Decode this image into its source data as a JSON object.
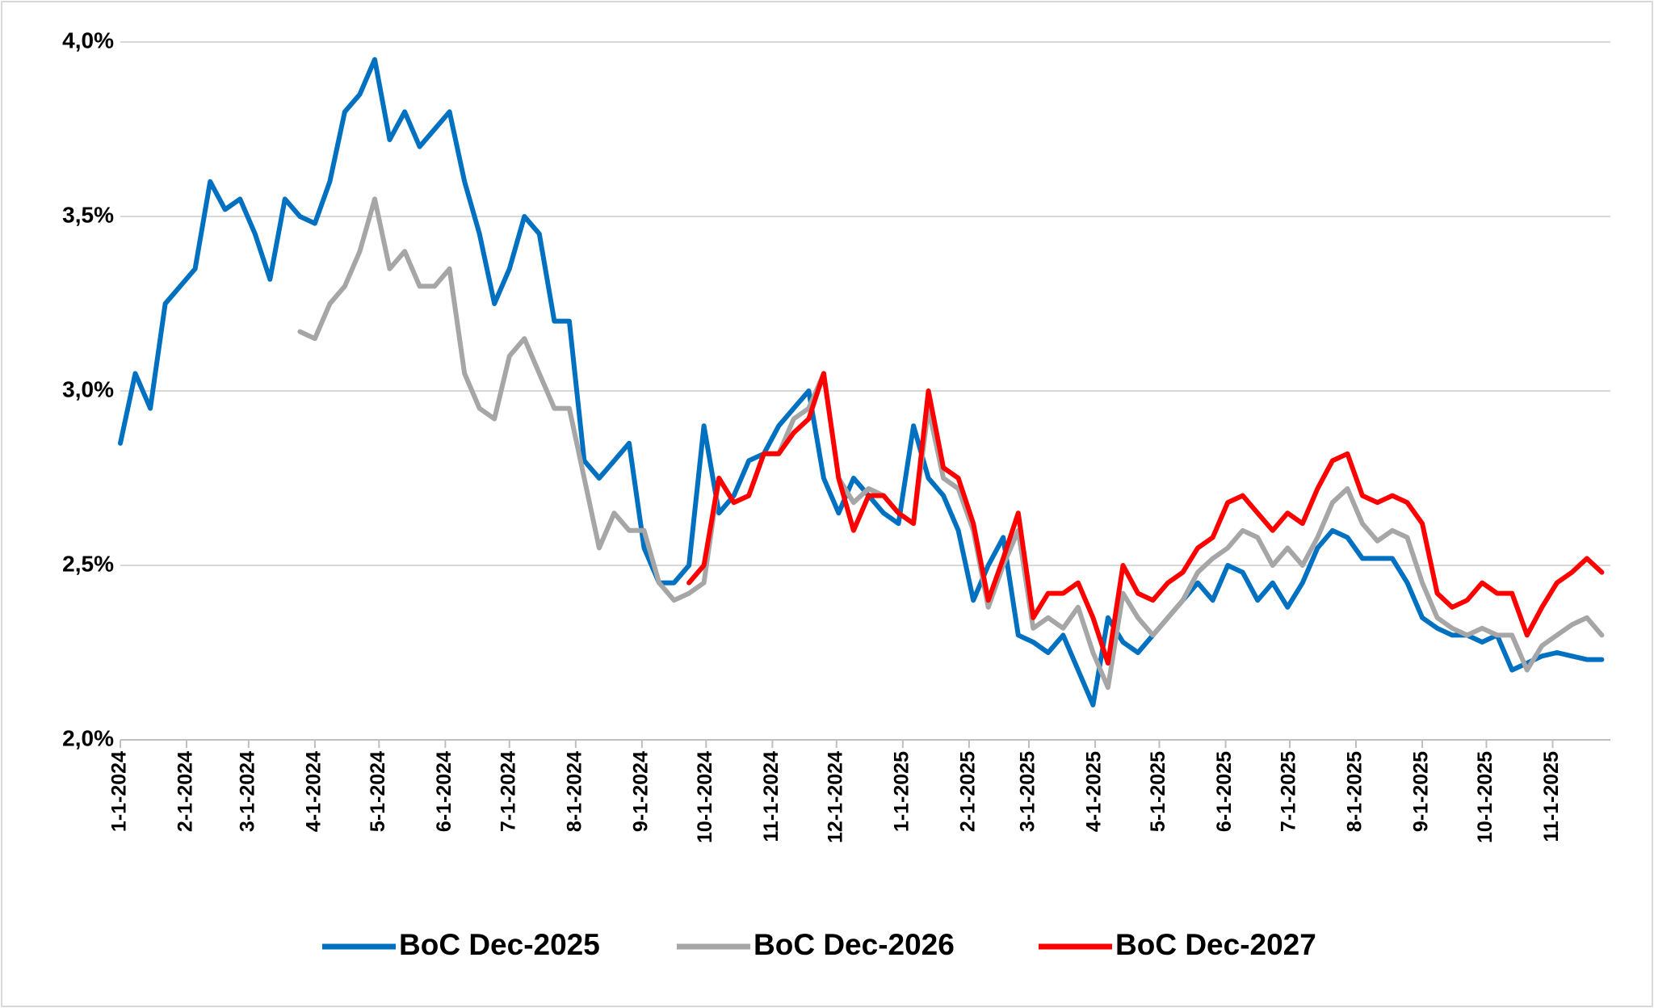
{
  "chart_data": {
    "type": "line",
    "x": [
      "2024-01-01",
      "2024-01-08",
      "2024-01-15",
      "2024-01-22",
      "2024-01-29",
      "2024-02-05",
      "2024-02-12",
      "2024-02-19",
      "2024-02-26",
      "2024-03-04",
      "2024-03-11",
      "2024-03-18",
      "2024-03-25",
      "2024-04-01",
      "2024-04-08",
      "2024-04-15",
      "2024-04-22",
      "2024-04-29",
      "2024-05-06",
      "2024-05-13",
      "2024-05-20",
      "2024-05-27",
      "2024-06-03",
      "2024-06-10",
      "2024-06-17",
      "2024-06-24",
      "2024-07-01",
      "2024-07-08",
      "2024-07-15",
      "2024-07-22",
      "2024-07-29",
      "2024-08-05",
      "2024-08-12",
      "2024-08-19",
      "2024-08-26",
      "2024-09-02",
      "2024-09-09",
      "2024-09-16",
      "2024-09-23",
      "2024-09-30",
      "2024-10-07",
      "2024-10-14",
      "2024-10-21",
      "2024-10-28",
      "2024-11-04",
      "2024-11-11",
      "2024-11-18",
      "2024-11-25",
      "2024-12-02",
      "2024-12-09",
      "2024-12-16",
      "2024-12-23",
      "2024-12-30",
      "2025-01-06",
      "2025-01-13",
      "2025-01-20",
      "2025-01-27",
      "2025-02-03",
      "2025-02-10",
      "2025-02-17",
      "2025-02-24",
      "2025-03-03",
      "2025-03-10",
      "2025-03-17",
      "2025-03-24",
      "2025-03-31",
      "2025-04-07",
      "2025-04-14",
      "2025-04-21",
      "2025-04-28",
      "2025-05-05",
      "2025-05-12",
      "2025-05-19",
      "2025-05-26",
      "2025-06-02",
      "2025-06-09",
      "2025-06-16",
      "2025-06-23",
      "2025-06-30",
      "2025-07-07",
      "2025-07-14",
      "2025-07-21",
      "2025-07-28",
      "2025-08-04",
      "2025-08-11",
      "2025-08-18",
      "2025-08-25",
      "2025-09-01",
      "2025-09-08",
      "2025-09-15",
      "2025-09-22",
      "2025-09-29",
      "2025-10-06",
      "2025-10-13",
      "2025-10-20",
      "2025-10-27",
      "2025-11-03",
      "2025-11-10",
      "2025-11-17",
      "2025-11-24"
    ],
    "series": [
      {
        "name": "BoC Dec-2025",
        "color": "#0070c0",
        "values": [
          2.85,
          3.05,
          2.95,
          3.25,
          3.3,
          3.35,
          3.6,
          3.52,
          3.55,
          3.45,
          3.32,
          3.55,
          3.5,
          3.48,
          3.6,
          3.8,
          3.85,
          3.95,
          3.72,
          3.8,
          3.7,
          3.75,
          3.8,
          3.6,
          3.45,
          3.25,
          3.35,
          3.5,
          3.45,
          3.2,
          3.2,
          2.8,
          2.75,
          2.8,
          2.85,
          2.55,
          2.45,
          2.45,
          2.5,
          2.9,
          2.65,
          2.7,
          2.8,
          2.82,
          2.9,
          2.95,
          3.0,
          2.75,
          2.65,
          2.75,
          2.7,
          2.65,
          2.62,
          2.9,
          2.75,
          2.7,
          2.6,
          2.4,
          2.5,
          2.58,
          2.3,
          2.28,
          2.25,
          2.3,
          2.2,
          2.1,
          2.35,
          2.28,
          2.25,
          2.3,
          2.35,
          2.4,
          2.45,
          2.4,
          2.5,
          2.48,
          2.4,
          2.45,
          2.38,
          2.45,
          2.55,
          2.6,
          2.58,
          2.52,
          2.52,
          2.52,
          2.45,
          2.35,
          2.32,
          2.3,
          2.3,
          2.28,
          2.3,
          2.2,
          2.22,
          2.24,
          2.25,
          2.24,
          2.23,
          2.23
        ]
      },
      {
        "name": "BoC Dec-2026",
        "color": "#a6a6a6",
        "values": [
          null,
          null,
          null,
          null,
          null,
          null,
          null,
          null,
          null,
          null,
          null,
          null,
          3.17,
          3.15,
          3.25,
          3.3,
          3.4,
          3.55,
          3.35,
          3.4,
          3.3,
          3.3,
          3.35,
          3.05,
          2.95,
          2.92,
          3.1,
          3.15,
          3.05,
          2.95,
          2.95,
          2.75,
          2.55,
          2.65,
          2.6,
          2.6,
          2.45,
          2.4,
          2.42,
          2.45,
          2.75,
          2.68,
          2.7,
          2.82,
          2.82,
          2.92,
          2.95,
          3.05,
          2.75,
          2.68,
          2.72,
          2.7,
          2.65,
          2.62,
          2.95,
          2.75,
          2.72,
          2.6,
          2.38,
          2.5,
          2.6,
          2.32,
          2.35,
          2.32,
          2.38,
          2.25,
          2.15,
          2.42,
          2.35,
          2.3,
          2.35,
          2.4,
          2.48,
          2.52,
          2.55,
          2.6,
          2.58,
          2.5,
          2.55,
          2.5,
          2.58,
          2.68,
          2.72,
          2.62,
          2.57,
          2.6,
          2.58,
          2.45,
          2.35,
          2.32,
          2.3,
          2.32,
          2.3,
          2.3,
          2.2,
          2.27,
          2.3,
          2.33,
          2.35,
          2.3
        ]
      },
      {
        "name": "BoC Dec-2027",
        "color": "#ff0000",
        "values": [
          null,
          null,
          null,
          null,
          null,
          null,
          null,
          null,
          null,
          null,
          null,
          null,
          null,
          null,
          null,
          null,
          null,
          null,
          null,
          null,
          null,
          null,
          null,
          null,
          null,
          null,
          null,
          null,
          null,
          null,
          null,
          null,
          null,
          null,
          null,
          null,
          null,
          null,
          2.45,
          2.5,
          2.75,
          2.68,
          2.7,
          2.82,
          2.82,
          2.88,
          2.92,
          3.05,
          2.75,
          2.6,
          2.7,
          2.7,
          2.65,
          2.62,
          3.0,
          2.78,
          2.75,
          2.62,
          2.4,
          2.52,
          2.65,
          2.35,
          2.42,
          2.42,
          2.45,
          2.35,
          2.22,
          2.5,
          2.42,
          2.4,
          2.45,
          2.48,
          2.55,
          2.58,
          2.68,
          2.7,
          2.65,
          2.6,
          2.65,
          2.62,
          2.72,
          2.8,
          2.82,
          2.7,
          2.68,
          2.7,
          2.68,
          2.62,
          2.42,
          2.38,
          2.4,
          2.45,
          2.42,
          2.42,
          2.3,
          2.38,
          2.45,
          2.48,
          2.52,
          2.48
        ]
      }
    ],
    "xlim": [
      "2024-01-01",
      "2025-11-28"
    ],
    "xticks": [
      {
        "value": "2024-01-01",
        "label": "1-1-2024"
      },
      {
        "value": "2024-02-01",
        "label": "2-1-2024"
      },
      {
        "value": "2024-03-01",
        "label": "3-1-2024"
      },
      {
        "value": "2024-04-01",
        "label": "4-1-2024"
      },
      {
        "value": "2024-05-01",
        "label": "5-1-2024"
      },
      {
        "value": "2024-06-01",
        "label": "6-1-2024"
      },
      {
        "value": "2024-07-01",
        "label": "7-1-2024"
      },
      {
        "value": "2024-08-01",
        "label": "8-1-2024"
      },
      {
        "value": "2024-09-01",
        "label": "9-1-2024"
      },
      {
        "value": "2024-10-01",
        "label": "10-1-2024"
      },
      {
        "value": "2024-11-01",
        "label": "11-1-2024"
      },
      {
        "value": "2024-12-01",
        "label": "12-1-2024"
      },
      {
        "value": "2025-01-01",
        "label": "1-1-2025"
      },
      {
        "value": "2025-02-01",
        "label": "2-1-2025"
      },
      {
        "value": "2025-03-01",
        "label": "3-1-2025"
      },
      {
        "value": "2025-04-01",
        "label": "4-1-2025"
      },
      {
        "value": "2025-05-01",
        "label": "5-1-2025"
      },
      {
        "value": "2025-06-01",
        "label": "6-1-2025"
      },
      {
        "value": "2025-07-01",
        "label": "7-1-2025"
      },
      {
        "value": "2025-08-01",
        "label": "8-1-2025"
      },
      {
        "value": "2025-09-01",
        "label": "9-1-2025"
      },
      {
        "value": "2025-10-01",
        "label": "10-1-2025"
      },
      {
        "value": "2025-11-01",
        "label": "11-1-2025"
      }
    ],
    "ylim": [
      2.0,
      4.0
    ],
    "yticks": [
      {
        "value": 2.0,
        "label": "2,0%"
      },
      {
        "value": 2.5,
        "label": "2,5%"
      },
      {
        "value": 3.0,
        "label": "3,0%"
      },
      {
        "value": 3.5,
        "label": "3,5%"
      },
      {
        "value": 4.0,
        "label": "4,0%"
      }
    ],
    "grid": true,
    "legend": "bottom"
  }
}
